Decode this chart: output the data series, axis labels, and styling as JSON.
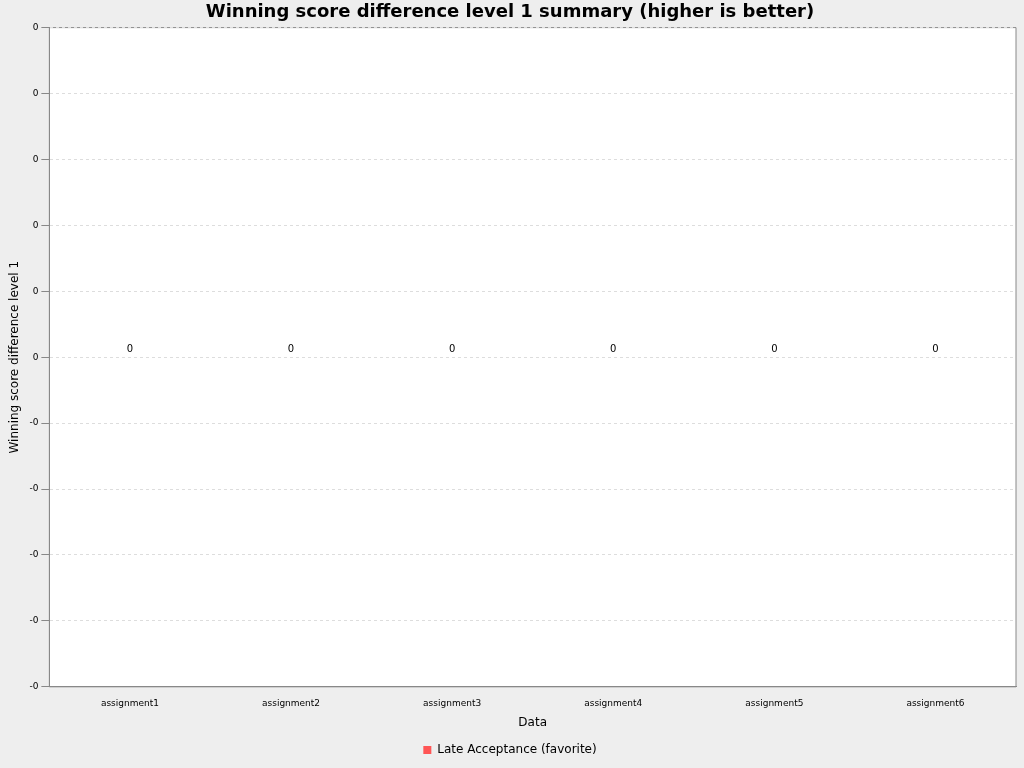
{
  "chart_data": {
    "type": "bar",
    "title": "Winning score difference level 1 summary (higher is better)",
    "xlabel": "Data",
    "ylabel": "Winning score difference level 1",
    "categories": [
      "assignment1",
      "assignment2",
      "assignment3",
      "assignment4",
      "assignment5",
      "assignment6"
    ],
    "series": [
      {
        "name": "Late Acceptance (favorite)",
        "color": "#ff5555",
        "values": [
          0,
          0,
          0,
          0,
          0,
          0
        ]
      }
    ],
    "ylim": [
      -0.5,
      0.5
    ],
    "yticks": [
      {
        "value": -0.5,
        "label": "-0"
      },
      {
        "value": -0.4,
        "label": "-0"
      },
      {
        "value": -0.3,
        "label": "-0"
      },
      {
        "value": -0.2,
        "label": "-0"
      },
      {
        "value": -0.1,
        "label": "-0"
      },
      {
        "value": 0,
        "label": "0"
      },
      {
        "value": 0.1,
        "label": "0"
      },
      {
        "value": 0.2,
        "label": "0"
      },
      {
        "value": 0.3,
        "label": "0"
      },
      {
        "value": 0.4,
        "label": "0"
      },
      {
        "value": 0.5,
        "label": "0"
      }
    ],
    "grid": "y",
    "legend": "bottom",
    "data_labels": true
  }
}
